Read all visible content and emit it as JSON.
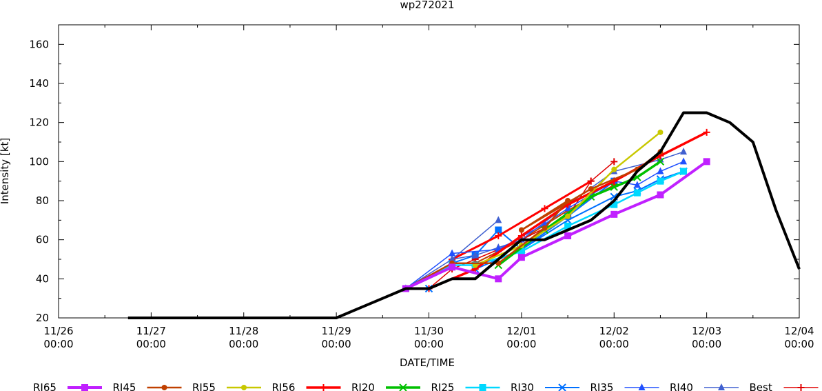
{
  "chart_data": {
    "type": "line",
    "title": "wp272021",
    "xlabel": "DATE/TIME",
    "ylabel": "Intensity [kt]",
    "grid": false,
    "legend_position": "bottom",
    "x_unit": "hours since 11/26 00:00",
    "xlim": [
      0,
      192
    ],
    "ylim": [
      20,
      170
    ],
    "y_ticks": [
      20,
      40,
      60,
      80,
      100,
      120,
      140,
      160
    ],
    "x_ticks": [
      {
        "x": 0,
        "date": "11/26",
        "time": "00:00"
      },
      {
        "x": 24,
        "date": "11/27",
        "time": "00:00"
      },
      {
        "x": 48,
        "date": "11/28",
        "time": "00:00"
      },
      {
        "x": 72,
        "date": "11/29",
        "time": "00:00"
      },
      {
        "x": 96,
        "date": "11/30",
        "time": "00:00"
      },
      {
        "x": 120,
        "date": "12/01",
        "time": "00:00"
      },
      {
        "x": 144,
        "date": "12/02",
        "time": "00:00"
      },
      {
        "x": 168,
        "date": "12/03",
        "time": "00:00"
      },
      {
        "x": 192,
        "date": "12/04",
        "time": "00:00"
      }
    ],
    "series": [
      {
        "name": "RI65",
        "color": "#c020ff",
        "width": 4,
        "marker": "square",
        "points": [
          [
            90,
            35
          ],
          [
            102,
            46
          ],
          [
            114,
            40
          ],
          [
            120,
            51
          ],
          [
            132,
            62
          ],
          [
            144,
            73
          ],
          [
            156,
            83
          ],
          [
            168,
            100
          ]
        ]
      },
      {
        "name": "RI45",
        "color": "#c04000",
        "width": 2.5,
        "marker": "circle",
        "points": [
          [
            90,
            35
          ],
          [
            102,
            48
          ],
          [
            114,
            48
          ],
          [
            126,
            66
          ],
          [
            132,
            80
          ],
          [
            120,
            65
          ],
          [
            138,
            86
          ],
          [
            150,
            96
          ],
          [
            156,
            105
          ]
        ]
      },
      {
        "name": "RI55",
        "color": "#c8c800",
        "width": 2.5,
        "marker": "circle",
        "points": [
          [
            108,
            47
          ],
          [
            120,
            57
          ],
          [
            132,
            72
          ],
          [
            144,
            96
          ],
          [
            156,
            115
          ]
        ]
      },
      {
        "name": "RI56",
        "color": "#ff0000",
        "width": 3.5,
        "marker": "plus",
        "points": [
          [
            96,
            35
          ],
          [
            108,
            45
          ],
          [
            120,
            62
          ],
          [
            132,
            78
          ],
          [
            144,
            90
          ],
          [
            156,
            103
          ],
          [
            168,
            115
          ]
        ]
      },
      {
        "name": "RI20",
        "color": "#00c000",
        "width": 3.5,
        "marker": "cross",
        "points": [
          [
            114,
            47
          ],
          [
            126,
            65
          ],
          [
            138,
            82
          ],
          [
            144,
            87
          ],
          [
            150,
            92
          ],
          [
            156,
            100
          ]
        ]
      },
      {
        "name": "RI25",
        "color": "#00d8ff",
        "width": 2.5,
        "marker": "square",
        "points": [
          [
            90,
            35
          ],
          [
            102,
            47
          ],
          [
            108,
            47
          ],
          [
            120,
            54
          ],
          [
            132,
            67
          ],
          [
            144,
            78
          ],
          [
            150,
            84
          ],
          [
            156,
            90
          ],
          [
            162,
            95
          ]
        ]
      },
      {
        "name": "RI30",
        "color": "#0070ff",
        "width": 2,
        "marker": "cross",
        "points": [
          [
            96,
            35
          ],
          [
            108,
            45
          ],
          [
            120,
            55
          ],
          [
            132,
            70
          ],
          [
            144,
            82
          ],
          [
            150,
            85
          ],
          [
            156,
            91
          ],
          [
            162,
            95
          ]
        ]
      },
      {
        "name": "RI35",
        "color": "#2050ff",
        "width": 1.5,
        "marker": "triangle",
        "points": [
          [
            90,
            35
          ],
          [
            102,
            53
          ],
          [
            114,
            55
          ],
          [
            126,
            68
          ],
          [
            132,
            76
          ],
          [
            144,
            90
          ],
          [
            150,
            88
          ],
          [
            156,
            95
          ],
          [
            162,
            100
          ]
        ]
      },
      {
        "name": "RI40",
        "color": "#4060d0",
        "width": 1.5,
        "marker": "triangle",
        "points": [
          [
            90,
            35
          ],
          [
            102,
            50
          ],
          [
            108,
            52
          ],
          [
            114,
            56
          ],
          [
            120,
            60
          ],
          [
            132,
            78
          ],
          [
            144,
            95
          ],
          [
            156,
            101
          ],
          [
            162,
            105
          ]
        ]
      },
      {
        "name": "Best",
        "color": "#e00000",
        "width": 1.5,
        "marker": "plus",
        "points": [
          [
            96,
            35
          ],
          [
            102,
            45
          ],
          [
            108,
            50
          ],
          [
            120,
            60
          ],
          [
            132,
            72
          ],
          [
            138,
            90
          ],
          [
            144,
            100
          ]
        ]
      }
    ],
    "extra_series": [
      {
        "color": "#0070ff",
        "width": 2,
        "marker": "square",
        "points": [
          [
            102,
            48
          ],
          [
            108,
            52
          ],
          [
            114,
            65
          ],
          [
            120,
            55
          ],
          [
            132,
            72
          ],
          [
            144,
            90
          ]
        ]
      },
      {
        "color": "#ff0000",
        "width": 3,
        "marker": "plus",
        "points": [
          [
            102,
            50
          ],
          [
            114,
            62
          ],
          [
            126,
            76
          ],
          [
            138,
            90
          ]
        ]
      },
      {
        "color": "#4060d0",
        "width": 1.5,
        "marker": "triangle",
        "points": [
          [
            102,
            50
          ],
          [
            114,
            70
          ]
        ]
      },
      {
        "color": "#c04000",
        "width": 2,
        "marker": "circle",
        "points": [
          [
            108,
            48
          ],
          [
            120,
            60
          ],
          [
            132,
            75
          ],
          [
            144,
            88
          ]
        ]
      }
    ],
    "best_track": {
      "name": "Best",
      "color": "#000000",
      "width": 4,
      "points": [
        [
          18,
          20
        ],
        [
          24,
          20
        ],
        [
          48,
          20
        ],
        [
          72,
          20
        ],
        [
          78,
          25
        ],
        [
          84,
          30
        ],
        [
          90,
          35
        ],
        [
          96,
          35
        ],
        [
          102,
          40
        ],
        [
          108,
          40
        ],
        [
          114,
          50
        ],
        [
          120,
          60
        ],
        [
          126,
          60
        ],
        [
          132,
          65
        ],
        [
          138,
          70
        ],
        [
          144,
          80
        ],
        [
          150,
          95
        ],
        [
          156,
          105
        ],
        [
          162,
          125
        ],
        [
          168,
          125
        ],
        [
          174,
          120
        ],
        [
          180,
          110
        ],
        [
          186,
          75
        ],
        [
          192,
          45
        ]
      ]
    }
  }
}
